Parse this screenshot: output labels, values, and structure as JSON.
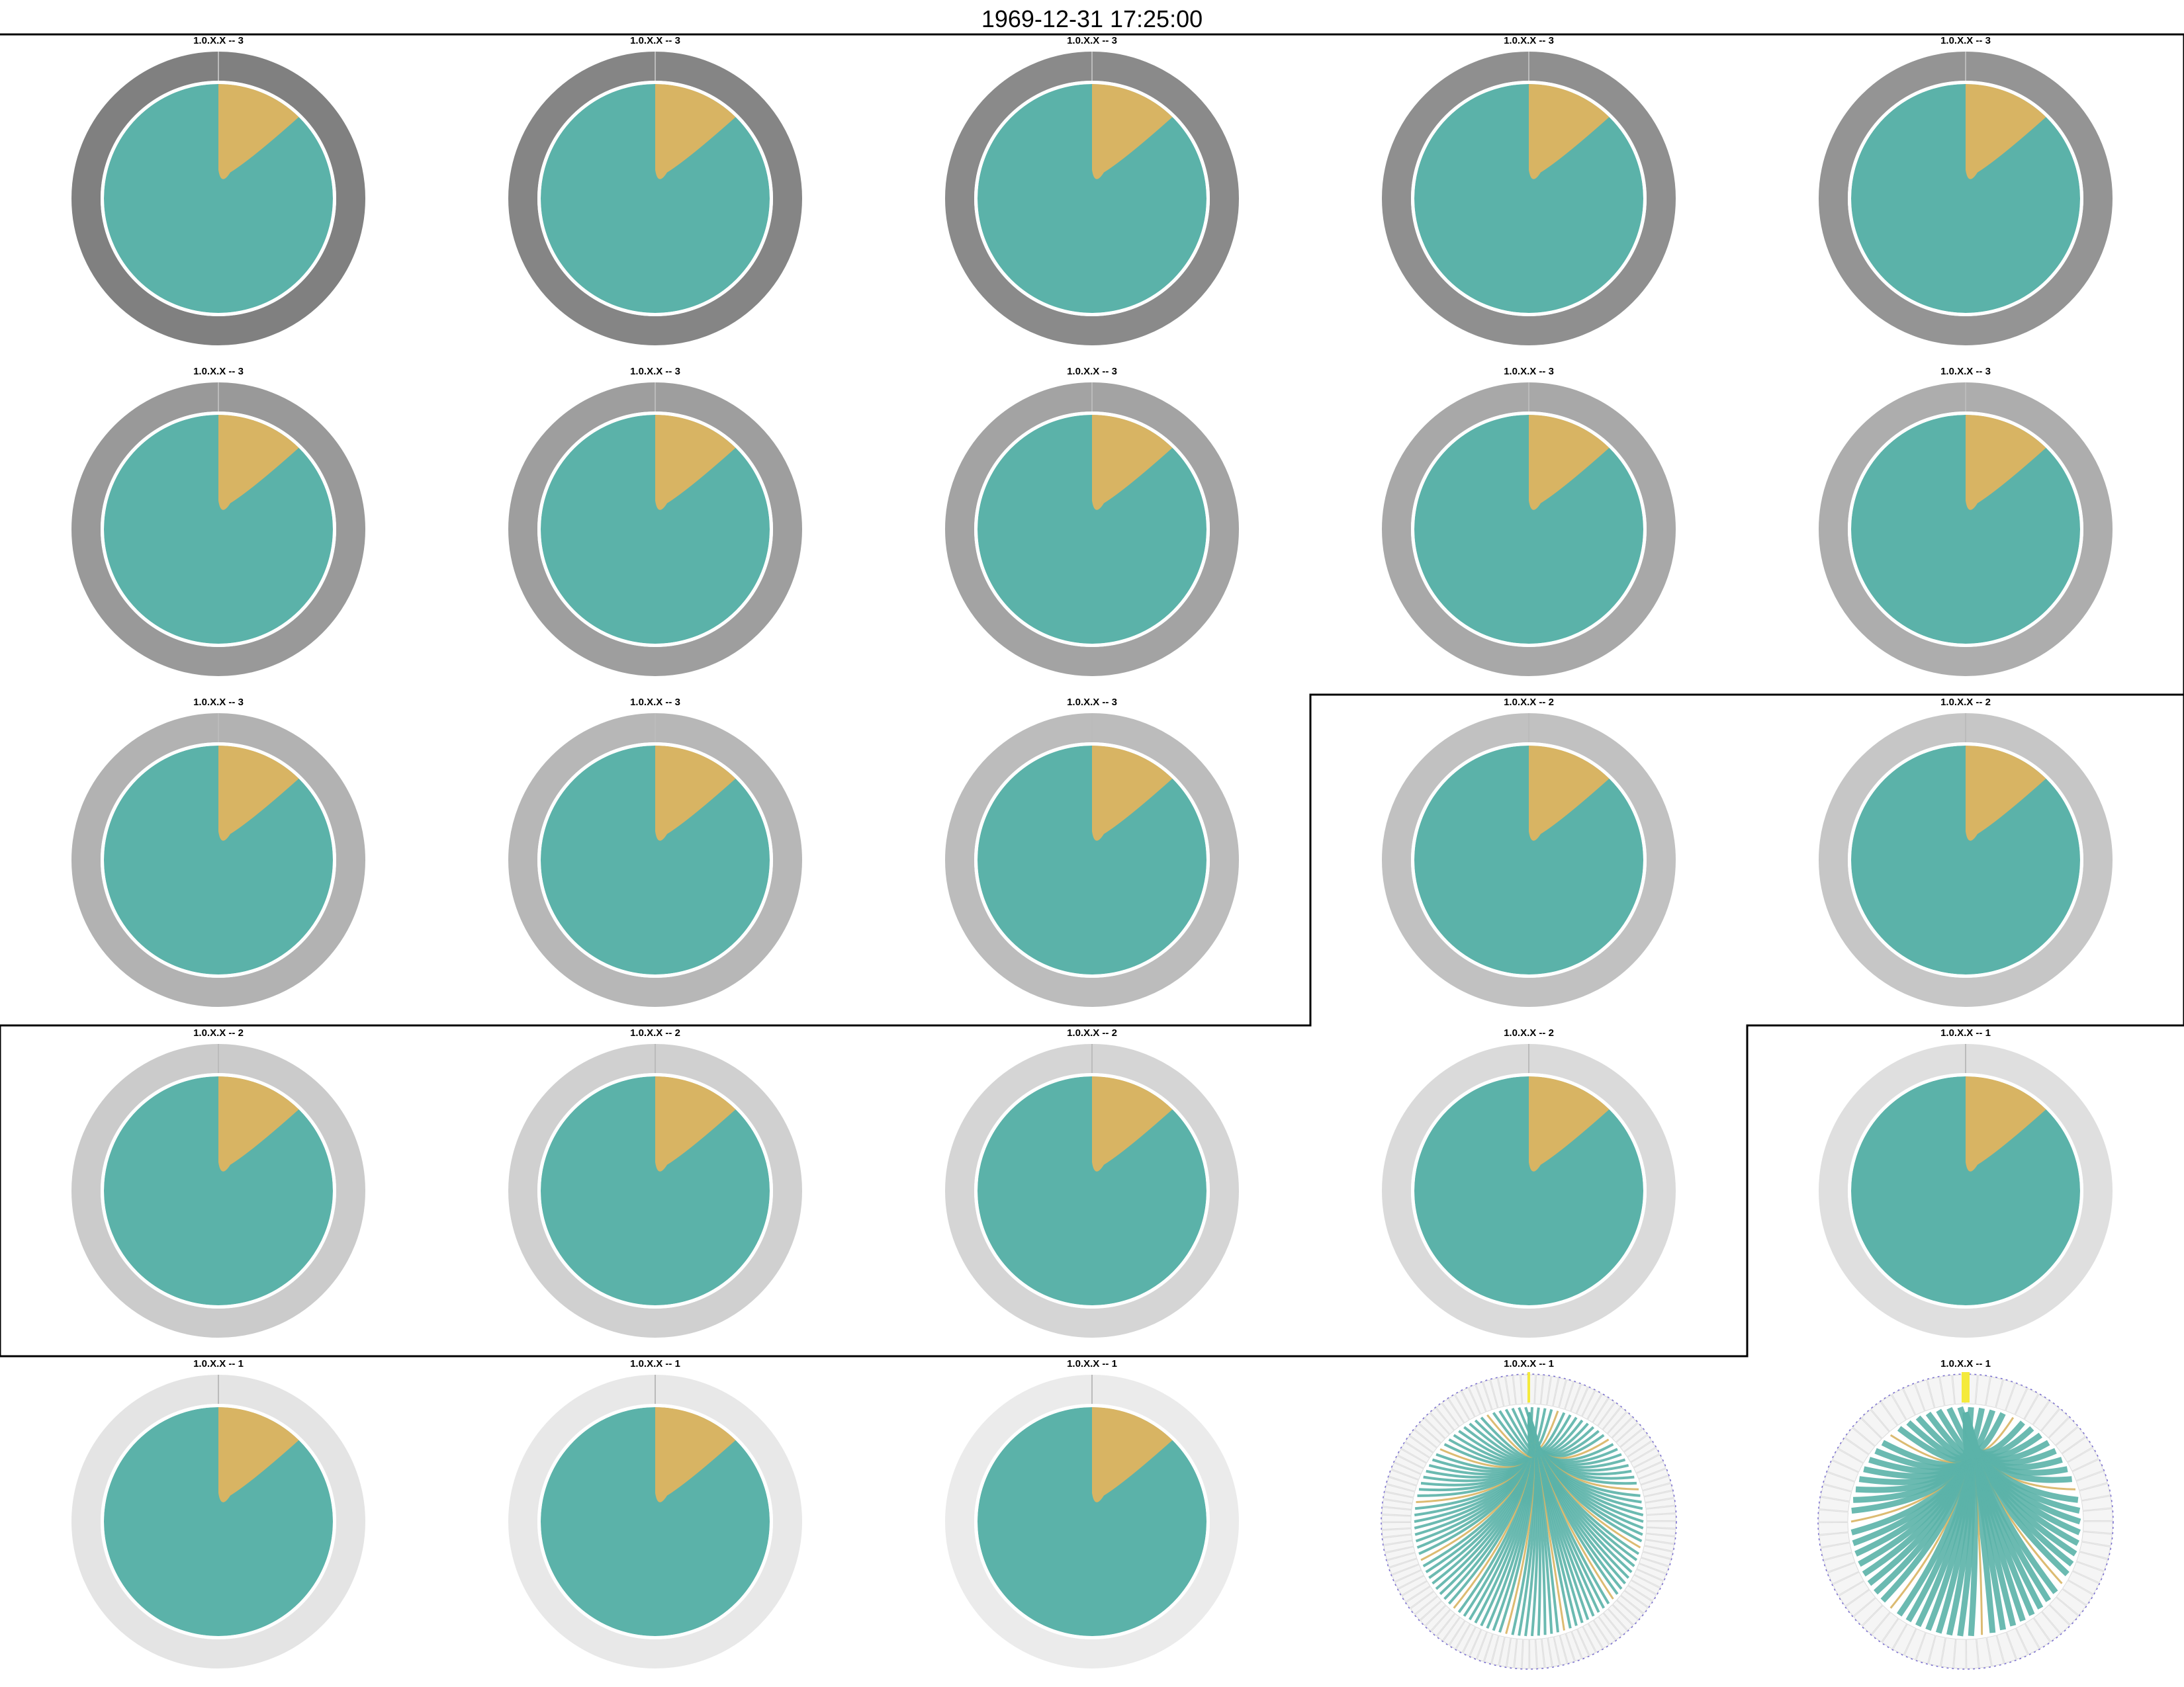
{
  "title": "1969-12-31 17:25:00",
  "colors": {
    "teal": "#5bb2a9",
    "gold": "#d8b463",
    "white": "#ffffff",
    "group_border": "#000000",
    "yellow_marker": "#f4ea3c",
    "ring_dots": "#7a6fd0"
  },
  "chart_data": {
    "type": "pie",
    "layout": {
      "rows": 5,
      "cols": 5
    },
    "slice_values": {
      "teal": 0.876,
      "gold": 0.124
    },
    "cells": [
      {
        "label": "1.0.X.X -- 3",
        "group": 3,
        "ring_shade": "#808080",
        "style": "solid"
      },
      {
        "label": "1.0.X.X -- 3",
        "group": 3,
        "ring_shade": "#858585",
        "style": "solid"
      },
      {
        "label": "1.0.X.X -- 3",
        "group": 3,
        "ring_shade": "#8a8a8a",
        "style": "solid"
      },
      {
        "label": "1.0.X.X -- 3",
        "group": 3,
        "ring_shade": "#8f8f8f",
        "style": "solid"
      },
      {
        "label": "1.0.X.X -- 3",
        "group": 3,
        "ring_shade": "#949494",
        "style": "solid"
      },
      {
        "label": "1.0.X.X -- 3",
        "group": 3,
        "ring_shade": "#999999",
        "style": "solid"
      },
      {
        "label": "1.0.X.X -- 3",
        "group": 3,
        "ring_shade": "#9e9e9e",
        "style": "solid"
      },
      {
        "label": "1.0.X.X -- 3",
        "group": 3,
        "ring_shade": "#a3a3a3",
        "style": "solid"
      },
      {
        "label": "1.0.X.X -- 3",
        "group": 3,
        "ring_shade": "#a8a8a8",
        "style": "solid"
      },
      {
        "label": "1.0.X.X -- 3",
        "group": 3,
        "ring_shade": "#adadad",
        "style": "solid"
      },
      {
        "label": "1.0.X.X -- 3",
        "group": 3,
        "ring_shade": "#b2b2b2",
        "style": "solid"
      },
      {
        "label": "1.0.X.X -- 3",
        "group": 3,
        "ring_shade": "#b7b7b7",
        "style": "solid"
      },
      {
        "label": "1.0.X.X -- 3",
        "group": 3,
        "ring_shade": "#bcbcbc",
        "style": "solid"
      },
      {
        "label": "1.0.X.X -- 2",
        "group": 2,
        "ring_shade": "#c1c1c1",
        "style": "solid"
      },
      {
        "label": "1.0.X.X -- 2",
        "group": 2,
        "ring_shade": "#c6c6c6",
        "style": "solid"
      },
      {
        "label": "1.0.X.X -- 2",
        "group": 2,
        "ring_shade": "#cbcbcb",
        "style": "solid"
      },
      {
        "label": "1.0.X.X -- 2",
        "group": 2,
        "ring_shade": "#d0d0d0",
        "style": "solid"
      },
      {
        "label": "1.0.X.X -- 2",
        "group": 2,
        "ring_shade": "#d5d5d5",
        "style": "solid"
      },
      {
        "label": "1.0.X.X -- 2",
        "group": 2,
        "ring_shade": "#dadada",
        "style": "solid"
      },
      {
        "label": "1.0.X.X -- 1",
        "group": 1,
        "ring_shade": "#dfdfdf",
        "style": "solid"
      },
      {
        "label": "1.0.X.X -- 1",
        "group": 1,
        "ring_shade": "#e4e4e4",
        "style": "solid"
      },
      {
        "label": "1.0.X.X -- 1",
        "group": 1,
        "ring_shade": "#e8e8e8",
        "style": "solid"
      },
      {
        "label": "1.0.X.X -- 1",
        "group": 1,
        "ring_shade": "#ebebeb",
        "style": "solid"
      },
      {
        "label": "1.0.X.X -- 1",
        "group": 1,
        "ring_shade": "#f0f0f0",
        "style": "fan"
      },
      {
        "label": "1.0.X.X -- 1",
        "group": 1,
        "ring_shade": "#f2f2f2",
        "style": "bars"
      }
    ]
  }
}
